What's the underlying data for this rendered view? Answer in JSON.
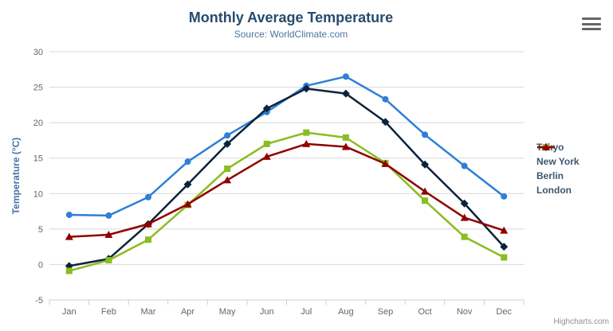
{
  "chart": {
    "title": "Monthly Average Temperature",
    "subtitle": "Source: WorldClimate.com",
    "credits": "Highcharts.com",
    "context_menu_icon": "hamburger-icon"
  },
  "chart_data": {
    "type": "line",
    "title": "Monthly Average Temperature",
    "subtitle": "Source: WorldClimate.com",
    "categories": [
      "Jan",
      "Feb",
      "Mar",
      "Apr",
      "May",
      "Jun",
      "Jul",
      "Aug",
      "Sep",
      "Oct",
      "Nov",
      "Dec"
    ],
    "series": [
      {
        "name": "Tokyo",
        "color": "#2f7ed8",
        "marker": "circle",
        "values": [
          7.0,
          6.9,
          9.5,
          14.5,
          18.2,
          21.5,
          25.2,
          26.5,
          23.3,
          18.3,
          13.9,
          9.6
        ]
      },
      {
        "name": "New York",
        "color": "#0d233a",
        "marker": "diamond",
        "values": [
          -0.2,
          0.8,
          5.7,
          11.3,
          17.0,
          22.0,
          24.8,
          24.1,
          20.1,
          14.1,
          8.6,
          2.5
        ]
      },
      {
        "name": "Berlin",
        "color": "#8bbc21",
        "marker": "square",
        "values": [
          -0.9,
          0.6,
          3.5,
          8.4,
          13.5,
          17.0,
          18.6,
          17.9,
          14.3,
          9.0,
          3.9,
          1.0
        ]
      },
      {
        "name": "London",
        "color": "#910000",
        "marker": "triangle",
        "values": [
          3.9,
          4.2,
          5.7,
          8.5,
          11.9,
          15.2,
          17.0,
          16.6,
          14.2,
          10.3,
          6.6,
          4.8
        ]
      }
    ],
    "xlabel": "",
    "ylabel": "Temperature (°C)",
    "ylim": [
      -5,
      30
    ],
    "ytick_interval": 5,
    "grid": true,
    "legend_position": "right"
  },
  "colors": {
    "title": "#274b6d",
    "subtitle": "#4d759e",
    "axis_label": "#666666",
    "y_axis_title": "#4572a7",
    "grid_line": "#d8d8d8",
    "axis_line": "#c0d0e0",
    "legend_text": "#3e576f",
    "credits": "#909090",
    "hamburger": "#666666"
  }
}
